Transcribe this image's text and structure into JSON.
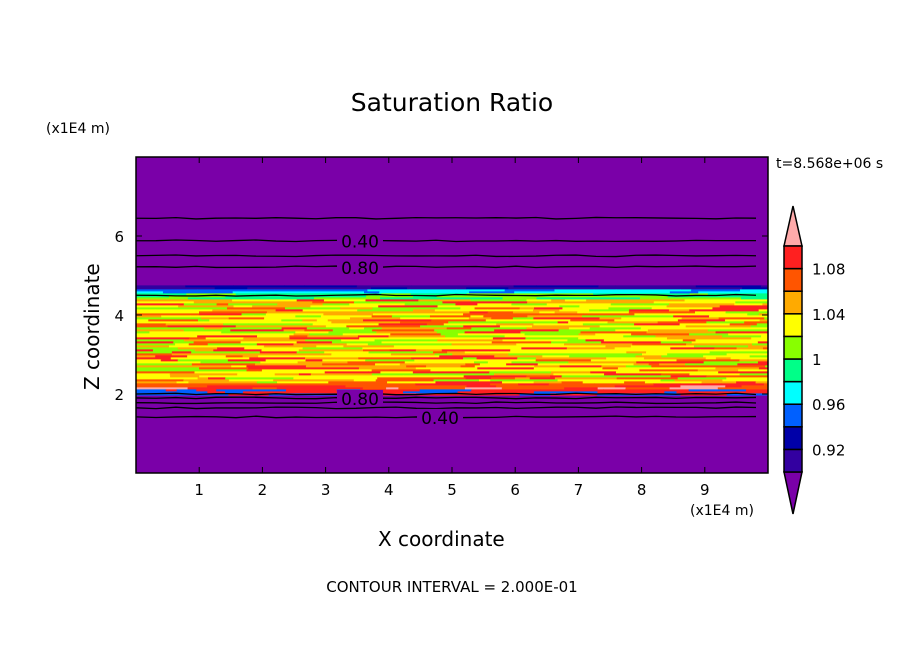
{
  "chart_data": {
    "type": "heatmap",
    "title": "Saturation Ratio",
    "xlabel": "X coordinate",
    "ylabel": "Z coordinate",
    "x_units": "(x1E4 m)",
    "y_units": "(x1E4 m)",
    "xlim": [
      0,
      10
    ],
    "ylim": [
      0,
      8
    ],
    "x_ticks": [
      "1",
      "2",
      "3",
      "4",
      "5",
      "6",
      "7",
      "8",
      "9"
    ],
    "y_ticks": [
      "2",
      "4",
      "6"
    ],
    "timestamp": "t=8.568e+06 s",
    "footer": "CONTOUR INTERVAL = 2.000E-01",
    "colorbar": {
      "levels": [
        0.9,
        0.92,
        0.94,
        0.96,
        0.98,
        1.0,
        1.02,
        1.04,
        1.06,
        1.08,
        1.1
      ],
      "tick_labels": [
        "0.92",
        "0.96",
        "1",
        "1.04",
        "1.08"
      ],
      "colors": [
        "#3300a0",
        "#0000a8",
        "#0060ff",
        "#00ffff",
        "#00ff88",
        "#88ff00",
        "#ffff00",
        "#ffaa00",
        "#ff5500",
        "#ff2020"
      ],
      "under_color": "#7a00a8",
      "over_color": "#ffaaaa"
    },
    "contour_labels": [
      "0.40",
      "0.80",
      "0.80",
      "0.40"
    ],
    "regions": {
      "dry_layers_z": [
        [
          0,
          2.0
        ],
        [
          4.75,
          8
        ]
      ],
      "saturated_layer_z": [
        2.0,
        4.5
      ]
    }
  }
}
